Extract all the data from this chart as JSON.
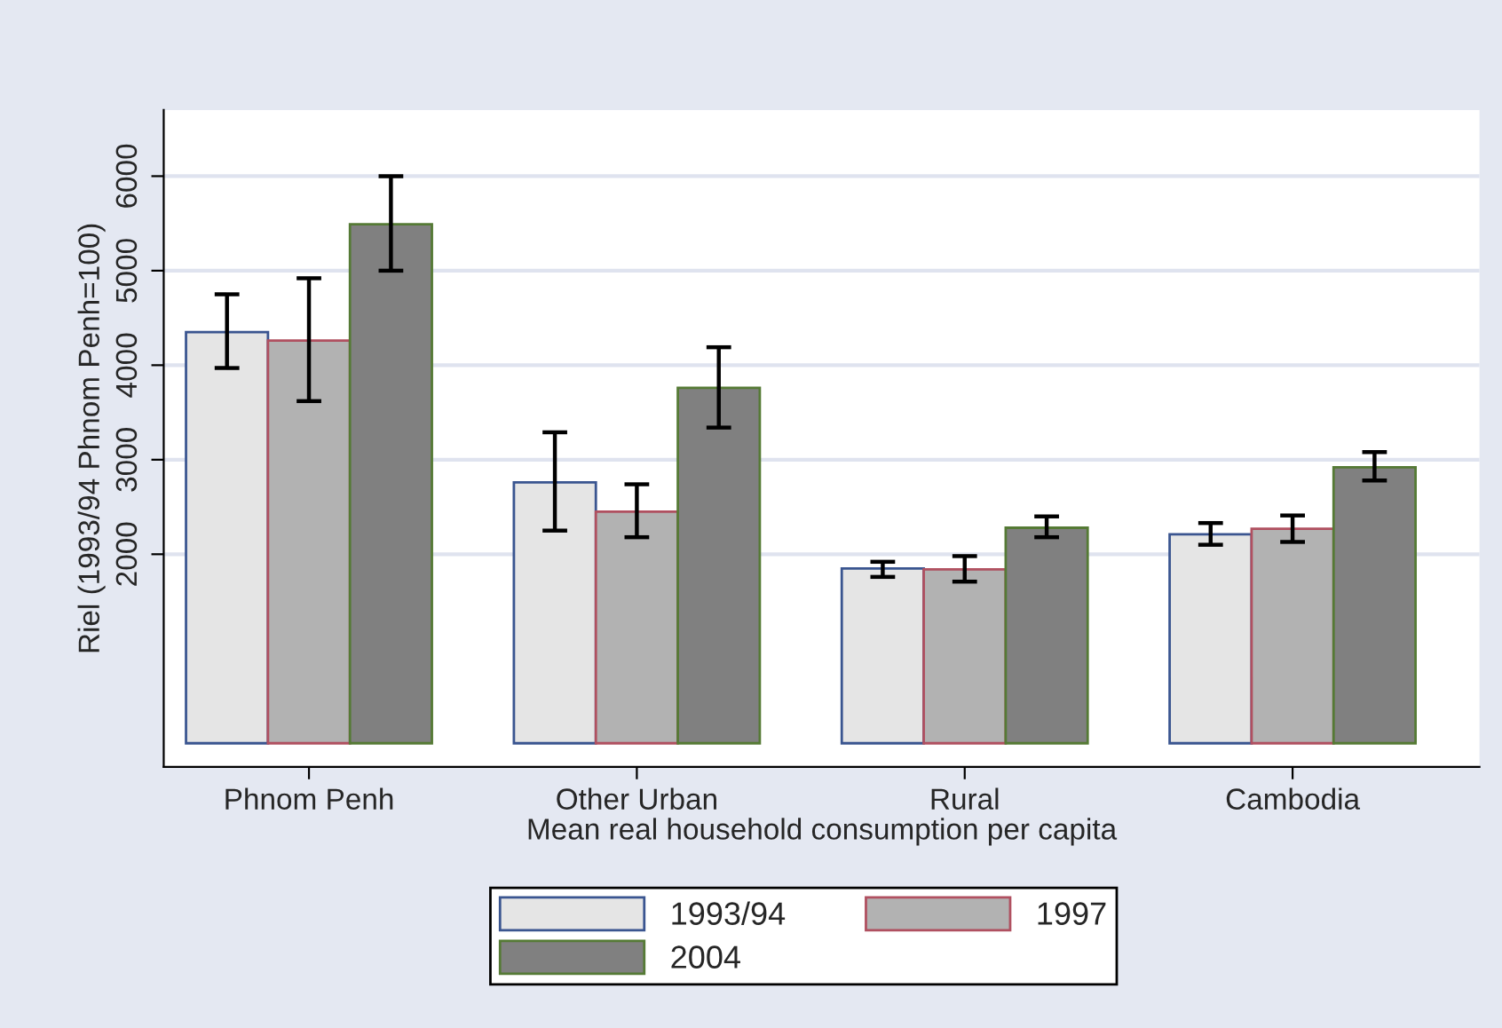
{
  "chart_data": {
    "type": "bar",
    "xlabel": "Mean real household consumption per capita",
    "ylabel": "Riel (1993/94 Phnom Penh=100)",
    "categories": [
      "Phnom Penh",
      "Other Urban",
      "Rural",
      "Cambodia"
    ],
    "series": [
      {
        "name": "1993/94",
        "color": "#e5e5e5",
        "values": [
          4350,
          2760,
          1850,
          2210
        ],
        "errors": [
          [
            3970,
            4750
          ],
          [
            2250,
            3290
          ],
          [
            1760,
            1920
          ],
          [
            2100,
            2330
          ]
        ]
      },
      {
        "name": "1997",
        "color": "#b2b2b2",
        "values": [
          4260,
          2450,
          1840,
          2270
        ],
        "errors": [
          [
            3620,
            4920
          ],
          [
            2180,
            2740
          ],
          [
            1710,
            1980
          ],
          [
            2130,
            2410
          ]
        ]
      },
      {
        "name": "2004",
        "color": "#808080",
        "values": [
          5490,
          3760,
          2280,
          2920
        ],
        "errors": [
          [
            5000,
            6000
          ],
          [
            3340,
            4190
          ],
          [
            2180,
            2400
          ],
          [
            2780,
            3080
          ]
        ]
      }
    ],
    "ylim": [
      -250,
      6700
    ],
    "yticks": [
      2000,
      3000,
      4000,
      5000,
      6000
    ],
    "grid": "y",
    "legend": "bottom"
  }
}
